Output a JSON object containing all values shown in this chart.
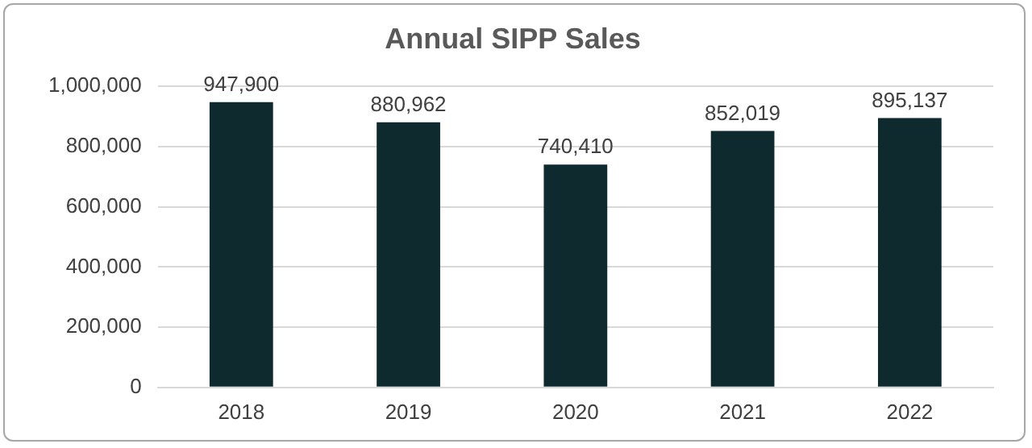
{
  "chart_data": {
    "type": "bar",
    "title": "Annual SIPP Sales",
    "categories": [
      "2018",
      "2019",
      "2020",
      "2021",
      "2022"
    ],
    "values": [
      947900,
      880962,
      740410,
      852019,
      895137
    ],
    "value_labels": [
      "947,900",
      "880,962",
      "740,410",
      "852,019",
      "895,137"
    ],
    "color": "#0e2a2f",
    "ylim": [
      0,
      1000000
    ],
    "yticks": [
      0,
      {
        "value": 200000,
        "label": "200,000"
      },
      {
        "value": 400000,
        "label": "400,000"
      },
      {
        "value": 600000,
        "label": "600,000"
      },
      {
        "value": 800000,
        "label": "800,000"
      },
      {
        "value": 1000000,
        "label": "1,000,000"
      }
    ],
    "grid": "y",
    "legend": false
  }
}
